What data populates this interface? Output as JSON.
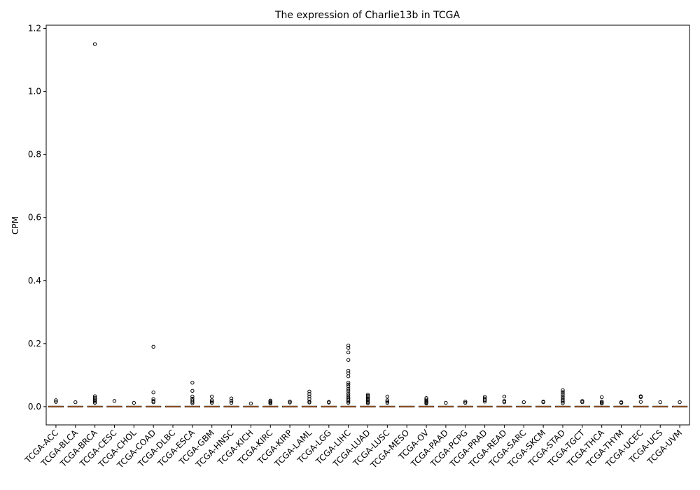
{
  "chart_data": {
    "type": "box",
    "title": "The expression of Charlie13b in TCGA",
    "xlabel": "",
    "ylabel": "CPM",
    "ylim": [
      -0.058,
      1.21
    ],
    "yticks": [
      0.0,
      0.2,
      0.4,
      0.6,
      0.8,
      1.0,
      1.2
    ],
    "ytick_labels": [
      "0.0",
      "0.2",
      "0.4",
      "0.6",
      "0.8",
      "1.0",
      "1.2"
    ],
    "grid": false,
    "box_color": "#000000",
    "median_color": "#f08030",
    "categories": [
      "TCGA-ACC",
      "TCGA-BLCA",
      "TCGA-BRCA",
      "TCGA-CESC",
      "TCGA-CHOL",
      "TCGA-COAD",
      "TCGA-DLBC",
      "TCGA-ESCA",
      "TCGA-GBM",
      "TCGA-HNSC",
      "TCGA-KICH",
      "TCGA-KIRC",
      "TCGA-KIRP",
      "TCGA-LAML",
      "TCGA-LGG",
      "TCGA-LIHC",
      "TCGA-LUAD",
      "TCGA-LUSC",
      "TCGA-MESO",
      "TCGA-OV",
      "TCGA-PAAD",
      "TCGA-PCPG",
      "TCGA-PRAD",
      "TCGA-READ",
      "TCGA-SARC",
      "TCGA-SKCM",
      "TCGA-STAD",
      "TCGA-TGCT",
      "TCGA-THCA",
      "TCGA-THYM",
      "TCGA-UCEC",
      "TCGA-UCS",
      "TCGA-UVM"
    ],
    "medians": [
      0,
      0,
      0,
      0,
      0,
      0,
      0,
      0,
      0,
      0,
      0,
      0,
      0,
      0,
      0,
      0,
      0,
      0,
      0,
      0,
      0,
      0,
      0,
      0,
      0,
      0,
      0,
      0,
      0,
      0,
      0,
      0,
      0
    ],
    "outliers": [
      [
        0.015,
        0.02
      ],
      [
        0.014
      ],
      [
        1.15,
        0.033,
        0.028,
        0.024,
        0.02,
        0.016,
        0.012
      ],
      [
        0.018
      ],
      [
        0.012
      ],
      [
        0.19,
        0.045,
        0.024,
        0.018,
        0.014
      ],
      [],
      [
        0.076,
        0.05,
        0.032,
        0.025,
        0.02,
        0.015,
        0.011
      ],
      [
        0.032,
        0.02,
        0.016,
        0.012
      ],
      [
        0.026,
        0.018,
        0.012
      ],
      [
        0.01
      ],
      [
        0.019,
        0.016,
        0.013,
        0.01
      ],
      [
        0.016,
        0.013
      ],
      [
        0.048,
        0.04,
        0.032,
        0.024,
        0.016,
        0.013
      ],
      [
        0.015,
        0.013
      ],
      [
        0.194,
        0.186,
        0.172,
        0.148,
        0.114,
        0.106,
        0.096,
        0.076,
        0.07,
        0.064,
        0.056,
        0.05,
        0.042,
        0.036,
        0.03,
        0.025,
        0.02,
        0.016,
        0.012
      ],
      [
        0.038,
        0.034,
        0.03,
        0.026,
        0.022,
        0.018,
        0.014,
        0.011
      ],
      [
        0.032,
        0.02,
        0.016,
        0.012
      ],
      [],
      [
        0.027,
        0.022,
        0.018,
        0.015,
        0.012,
        0.01
      ],
      [
        0.012
      ],
      [
        0.016,
        0.012
      ],
      [
        0.031,
        0.026,
        0.021,
        0.016
      ],
      [
        0.032,
        0.018,
        0.014
      ],
      [
        0.014
      ],
      [
        0.016,
        0.014
      ],
      [
        0.052,
        0.046,
        0.04,
        0.033,
        0.027,
        0.021,
        0.016,
        0.011
      ],
      [
        0.018,
        0.014
      ],
      [
        0.03,
        0.016,
        0.013,
        0.01
      ],
      [
        0.014,
        0.012
      ],
      [
        0.033,
        0.03,
        0.015
      ],
      [
        0.014
      ],
      [
        0.014
      ]
    ]
  }
}
